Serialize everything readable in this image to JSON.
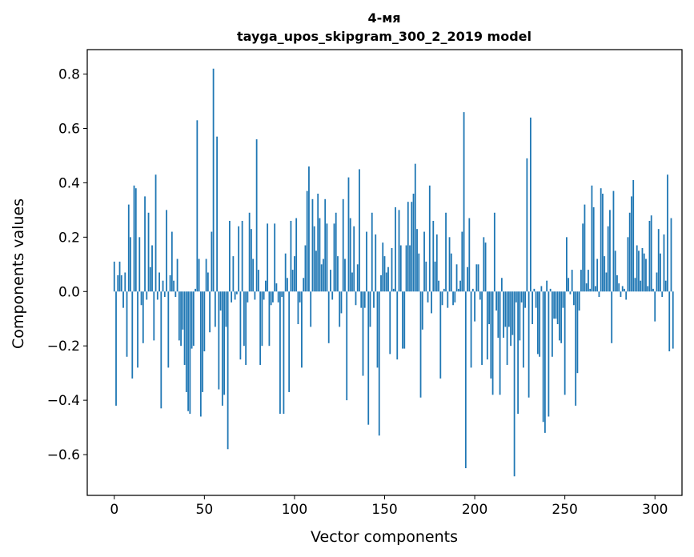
{
  "chart_data": {
    "type": "bar",
    "title_line1": "4-мя",
    "title_line2": "tayga_upos_skipgram_300_2_2019 model",
    "xlabel": "Vector components",
    "ylabel": "Components values",
    "xlim": [
      -15,
      315
    ],
    "ylim": [
      -0.75,
      0.89
    ],
    "xticks": [
      0,
      50,
      100,
      150,
      200,
      250,
      300
    ],
    "xtick_labels": [
      "0",
      "50",
      "100",
      "150",
      "200",
      "250",
      "300"
    ],
    "yticks": [
      -0.6,
      -0.4,
      -0.2,
      0.0,
      0.2,
      0.4,
      0.6,
      0.8
    ],
    "ytick_labels": [
      "−0.6",
      "−0.4",
      "−0.2",
      "0.0",
      "0.2",
      "0.4",
      "0.6",
      "0.8"
    ],
    "bar_color": "#1f77b4",
    "values": [
      0.11,
      -0.42,
      0.06,
      0.11,
      0.06,
      -0.06,
      0.07,
      -0.24,
      0.32,
      0.2,
      -0.32,
      0.39,
      0.38,
      -0.28,
      0.2,
      -0.05,
      -0.19,
      0.35,
      -0.03,
      0.29,
      0.09,
      0.17,
      -0.18,
      0.43,
      -0.03,
      0.07,
      -0.43,
      0.04,
      -0.02,
      0.3,
      -0.28,
      0.06,
      0.22,
      0.04,
      -0.02,
      0.12,
      -0.18,
      -0.2,
      -0.14,
      -0.27,
      -0.37,
      -0.44,
      -0.45,
      -0.21,
      -0.2,
      0.01,
      0.63,
      0.12,
      -0.46,
      -0.37,
      -0.22,
      0.12,
      0.07,
      -0.15,
      0.22,
      0.82,
      -0.13,
      0.57,
      -0.36,
      -0.07,
      -0.42,
      -0.38,
      -0.13,
      -0.58,
      0.26,
      -0.04,
      0.13,
      -0.03,
      -0.01,
      0.24,
      -0.25,
      0.26,
      -0.2,
      -0.27,
      -0.04,
      0.29,
      0.23,
      0.12,
      -0.03,
      0.56,
      0.08,
      -0.27,
      -0.2,
      -0.03,
      0.04,
      0.25,
      -0.2,
      -0.05,
      -0.04,
      0.25,
      0.03,
      -0.04,
      -0.45,
      -0.02,
      -0.45,
      0.14,
      0.05,
      -0.37,
      0.26,
      0.08,
      0.13,
      0.27,
      -0.12,
      -0.04,
      -0.28,
      0.05,
      0.17,
      0.37,
      0.46,
      -0.13,
      0.34,
      0.24,
      0.15,
      0.36,
      0.27,
      0.1,
      0.12,
      0.34,
      0.25,
      -0.19,
      0.08,
      -0.03,
      0.25,
      0.29,
      0.13,
      -0.13,
      -0.08,
      0.34,
      0.12,
      -0.4,
      0.42,
      0.27,
      0.07,
      0.24,
      -0.05,
      0.1,
      0.45,
      -0.06,
      -0.31,
      -0.06,
      0.22,
      -0.49,
      -0.13,
      0.29,
      -0.06,
      0.21,
      -0.28,
      -0.53,
      0.06,
      0.18,
      0.13,
      0.07,
      0.09,
      -0.23,
      0.16,
      0.01,
      0.31,
      -0.25,
      0.3,
      0.17,
      -0.21,
      -0.21,
      0.17,
      0.33,
      0.17,
      0.33,
      0.36,
      0.47,
      0.23,
      0.14,
      -0.39,
      -0.14,
      0.22,
      0.11,
      -0.04,
      0.39,
      -0.08,
      0.26,
      0.11,
      0.21,
      0.04,
      -0.32,
      -0.05,
      0.01,
      0.29,
      -0.06,
      0.2,
      0.14,
      -0.05,
      -0.04,
      0.1,
      0.01,
      0.04,
      0.22,
      0.66,
      -0.65,
      0.09,
      0.27,
      -0.28,
      0.01,
      -0.11,
      0.1,
      0.1,
      -0.03,
      -0.27,
      0.2,
      0.18,
      -0.25,
      -0.12,
      -0.32,
      -0.38,
      0.29,
      -0.07,
      -0.17,
      -0.38,
      0.05,
      -0.17,
      -0.13,
      -0.27,
      -0.13,
      -0.2,
      -0.16,
      -0.68,
      -0.04,
      -0.45,
      -0.18,
      -0.04,
      -0.28,
      -0.06,
      0.49,
      -0.39,
      0.64,
      -0.12,
      0.01,
      -0.06,
      -0.23,
      -0.24,
      0.02,
      -0.48,
      -0.52,
      0.04,
      -0.46,
      0.01,
      -0.24,
      -0.1,
      -0.1,
      -0.12,
      -0.18,
      -0.19,
      -0.06,
      -0.38,
      0.2,
      0.05,
      -0.01,
      0.08,
      -0.05,
      -0.42,
      -0.3,
      -0.07,
      0.08,
      0.25,
      0.32,
      0.03,
      0.08,
      0.01,
      0.39,
      0.31,
      0.02,
      0.12,
      -0.02,
      0.38,
      0.36,
      0.13,
      0.07,
      0.24,
      0.3,
      -0.19,
      0.37,
      0.15,
      0.06,
      0.03,
      -0.02,
      0.02,
      0.01,
      -0.03,
      0.2,
      0.29,
      0.35,
      0.41,
      0.05,
      0.17,
      0.15,
      0.04,
      0.16,
      0.14,
      0.12,
      0.02,
      0.26,
      0.28,
      0.01,
      -0.11,
      0.07,
      0.23,
      0.14,
      -0.02,
      0.21,
      0.04,
      0.43,
      -0.22,
      0.27,
      -0.21
    ]
  }
}
